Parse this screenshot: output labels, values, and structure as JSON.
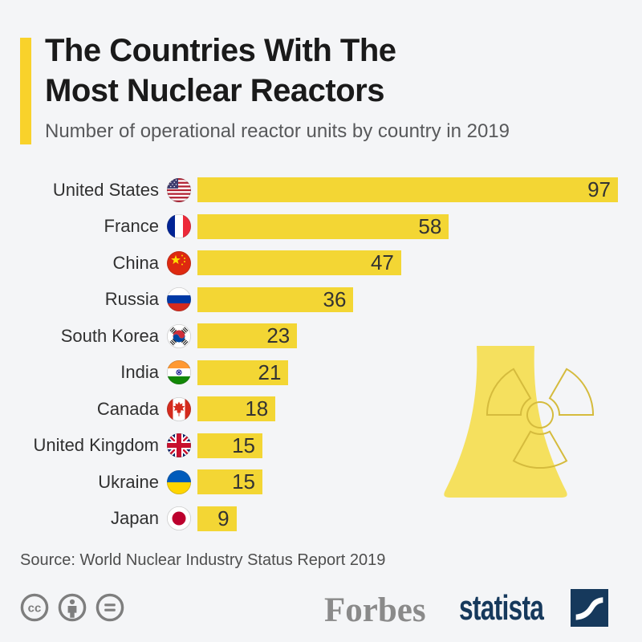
{
  "header": {
    "title_lines": [
      "The Countries With The",
      "Most Nuclear Reactors"
    ],
    "subtitle": "Number of operational reactor units by country in 2019"
  },
  "chart_data": {
    "type": "bar",
    "orientation": "horizontal",
    "title": "The Countries With The Most Nuclear Reactors",
    "subtitle": "Number of operational reactor units by country in 2019",
    "categories": [
      "United States",
      "France",
      "China",
      "Russia",
      "South Korea",
      "India",
      "Canada",
      "United Kingdom",
      "Ukraine",
      "Japan"
    ],
    "values": [
      97,
      58,
      47,
      36,
      23,
      21,
      18,
      15,
      15,
      9
    ],
    "flags": [
      "us",
      "fr",
      "cn",
      "ru",
      "kr",
      "in",
      "ca",
      "gb",
      "ua",
      "jp"
    ],
    "xlim": [
      0,
      97
    ],
    "xlabel": "",
    "ylabel": "",
    "grid": false,
    "legend": "none",
    "value_labels": "inside-bar-end",
    "source": "Source: World Nuclear Industry Status Report 2019"
  },
  "footer": {
    "source": "Source: World Nuclear Industry Status Report 2019",
    "license_icons": [
      "cc",
      "attribution",
      "equals"
    ],
    "brand_left": "Forbes",
    "brand_right": "statista"
  },
  "colors": {
    "bg": "#F4F5F7",
    "accent": "#F9D22B",
    "bar": "#F3D634",
    "tower": "#F5E05E",
    "trefoil": "#D5BB3D",
    "navy": "#16395C",
    "forbes": "#8A8A8A",
    "gray_icon": "#7E7E7E",
    "title": "#1A1A1A",
    "sub": "#58595B",
    "label": "#303030"
  }
}
